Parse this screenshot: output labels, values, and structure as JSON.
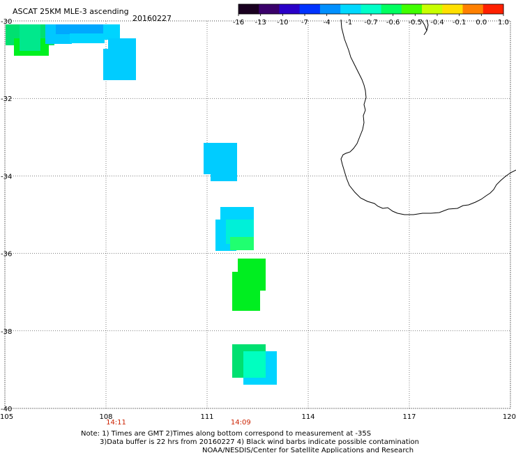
{
  "title": "ASCAT 25KM MLE-3 ascending",
  "date": "20160227",
  "colorbar": {
    "labels": [
      "-16",
      "-13",
      "-10",
      "-7",
      "-4",
      "-1",
      "-0.7",
      "-0.6",
      "-0.5",
      "-0.4",
      "-0.1",
      "0.0",
      "1.0"
    ],
    "colors": [
      "#1a0020",
      "#3a006a",
      "#2a00c8",
      "#0033ff",
      "#0090ff",
      "#00d8ff",
      "#00ffc8",
      "#00ff60",
      "#40ff00",
      "#c8ff00",
      "#ffe000",
      "#ff8000",
      "#ff2000"
    ]
  },
  "map": {
    "lon_ticks": [
      "105",
      "108",
      "111",
      "114",
      "117",
      "120"
    ],
    "lat_ticks": [
      "-30",
      "-32",
      "-34",
      "-36",
      "-38",
      "-40"
    ],
    "gridlines": true,
    "pass_times": [
      {
        "label": "14:11",
        "lon": 108.3
      },
      {
        "label": "14:09",
        "lon": 112.0
      }
    ]
  },
  "notes": [
    "Note: 1) Times are GMT 2)Times along bottom correspond to measurement at -35S",
    "3)Data buffer is 22 hrs from 20160227 4) Black wind barbs indicate possible contamination",
    "NOAA/NESDIS/Center for Satellite Applications and Research"
  ]
}
